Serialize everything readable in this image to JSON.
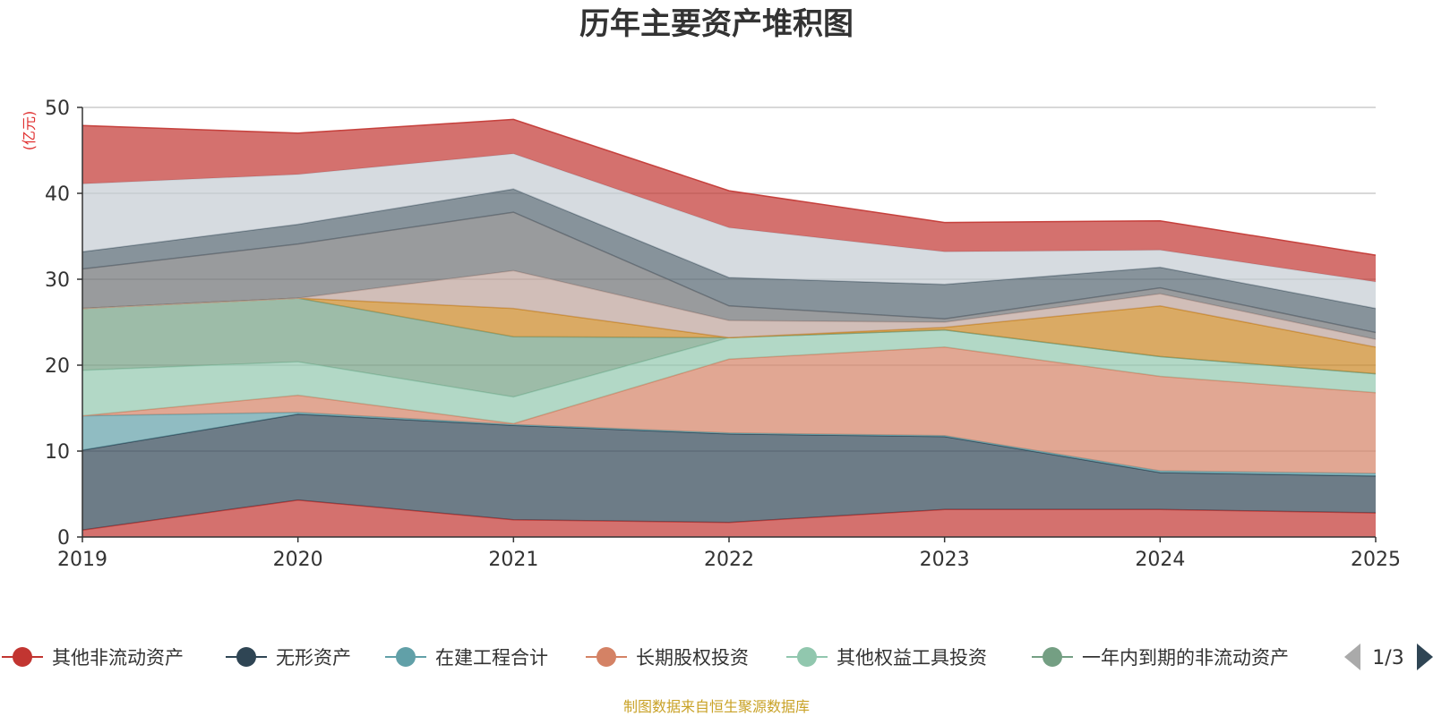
{
  "chart_data": {
    "type": "area",
    "stacked": true,
    "title": "历年主要资产堆积图",
    "unit_label": "(亿元)",
    "x": [
      "2019",
      "2020",
      "2021",
      "2022",
      "2023",
      "2024",
      "2025"
    ],
    "ylim": [
      0,
      50
    ],
    "yticks": [
      "0",
      "10",
      "20",
      "30",
      "40",
      "50"
    ],
    "grid": true,
    "legend_position": "bottom",
    "legend_page": "1/3",
    "series": [
      {
        "name": "其他非流动资产",
        "color": "#c23531",
        "values": [
          0.8,
          4.3,
          2.0,
          1.7,
          3.2,
          3.2,
          2.8
        ]
      },
      {
        "name": "无形资产",
        "color": "#2f4554",
        "values": [
          9.3,
          10.0,
          11.0,
          10.3,
          8.5,
          4.3,
          4.3
        ]
      },
      {
        "name": "在建工程合计",
        "color": "#61a0a8",
        "values": [
          4.0,
          0.2,
          0.1,
          0.1,
          0.1,
          0.2,
          0.3
        ]
      },
      {
        "name": "长期股权投资",
        "color": "#d48265",
        "values": [
          0.0,
          2.0,
          0.1,
          8.6,
          10.3,
          11.0,
          9.4
        ]
      },
      {
        "name": "其他权益工具投资",
        "color": "#91c7ae",
        "values": [
          5.3,
          3.9,
          3.1,
          2.5,
          2.0,
          2.3,
          2.2
        ]
      },
      {
        "name": "一年内到期的非流动资产",
        "color": "#749f83",
        "values": [
          7.2,
          7.4,
          7.0,
          0.0,
          0.0,
          0.0,
          0.0
        ]
      },
      {
        "name": "",
        "color": "#ca8622",
        "values": [
          0.0,
          0.0,
          3.3,
          0.0,
          0.3,
          5.9,
          3.1
        ]
      },
      {
        "name": "",
        "color": "#bda29a",
        "values": [
          0.0,
          0.0,
          4.4,
          2.0,
          0.6,
          1.4,
          0.9
        ]
      },
      {
        "name": "",
        "color": "#6e7074",
        "values": [
          4.6,
          6.3,
          6.8,
          1.7,
          0.4,
          0.7,
          0.8
        ]
      },
      {
        "name": "",
        "color": "#546570",
        "values": [
          2.0,
          2.3,
          2.7,
          3.3,
          4.0,
          2.4,
          2.8
        ]
      },
      {
        "name": "",
        "color": "#c4ccd3",
        "values": [
          7.9,
          5.8,
          4.1,
          5.8,
          3.8,
          2.0,
          3.1
        ]
      },
      {
        "name": "",
        "color": "#c23531",
        "values": [
          6.8,
          4.8,
          4.0,
          4.3,
          3.4,
          3.4,
          3.1
        ]
      }
    ]
  },
  "source_note": "制图数据来自恒生聚源数据库"
}
